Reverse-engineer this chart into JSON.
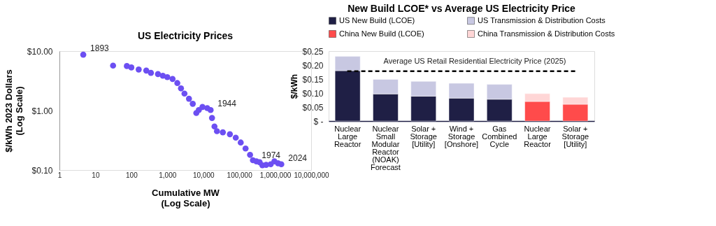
{
  "chart_data": [
    {
      "type": "scatter",
      "title": "US Electricity Prices",
      "xlabel": "Cumulative MW (Log Scale)",
      "ylabel": "$/kWh 2023 Dollars (Log Scale)",
      "log": "xy",
      "grid": false,
      "marker": "circle",
      "xlim": [
        1,
        10000000
      ],
      "ylim": [
        0.1,
        10
      ],
      "xticks": [
        1,
        10,
        100,
        {
          "value": 1000,
          "label": "1,000"
        },
        {
          "value": 10000,
          "label": "10,000"
        },
        {
          "value": 100000,
          "label": "100,000"
        },
        {
          "value": 1000000,
          "label": "1,000,000"
        },
        {
          "value": 10000000,
          "label": "10,000,000"
        }
      ],
      "yticks": [
        {
          "value": 0.1,
          "label": "$0.10"
        },
        {
          "value": 1,
          "label": "$1.00"
        },
        {
          "value": 10,
          "label": "$10.00"
        }
      ],
      "series": [
        {
          "color": "#6c4ff2",
          "x": [
            4.6,
            31,
            75,
            100,
            160,
            260,
            350,
            550,
            750,
            1000,
            1400,
            1900,
            2400,
            3000,
            4000,
            5100,
            6400,
            7500,
            9500,
            12900,
            16000,
            17500,
            20500,
            24000,
            35000,
            55000,
            80000,
            110000,
            150000,
            200000,
            240000,
            300000,
            370000,
            440000,
            560000,
            750000,
            950000,
            1200000,
            1480000
          ],
          "values": [
            8.7,
            5.7,
            5.6,
            5.3,
            4.9,
            4.7,
            4.3,
            4.1,
            3.85,
            3.65,
            3.4,
            2.9,
            2.36,
            1.93,
            1.58,
            1.3,
            0.91,
            1.02,
            1.15,
            1.1,
            1.02,
            0.75,
            0.54,
            0.45,
            0.43,
            0.4,
            0.35,
            0.29,
            0.23,
            0.18,
            0.146,
            0.14,
            0.135,
            0.12,
            0.122,
            0.125,
            0.14,
            0.13,
            0.125
          ]
        }
      ],
      "annotations": [
        {
          "text": "1893",
          "x": 4.6,
          "y": 8.7
        },
        {
          "text": "1944",
          "x": 16000,
          "y": 1.02
        },
        {
          "text": "1974",
          "x": 270000,
          "y": 0.14
        },
        {
          "text": "2024",
          "x": 1480000,
          "y": 0.125
        }
      ]
    },
    {
      "type": "bar",
      "stacked": true,
      "title": "New Build LCOE* vs Average US Electricity Price",
      "ylabel": "$/kWh",
      "legend": "top",
      "grid": false,
      "categories": [
        "Nuclear Large Reactor",
        "Nuclear Small Modular Reactor (NOAK) Forecast",
        "Solar + Storage [Utility]",
        "Wind + Storage [Onshore]",
        "Gas Combined Cycle",
        "Nuclear Large Reactor",
        "Solar + Storage [Utility]"
      ],
      "ylim": [
        0,
        0.25
      ],
      "yticks": [
        {
          "value": 0,
          "label": "$ -"
        },
        {
          "value": 0.05,
          "label": "$0.05"
        },
        {
          "value": 0.1,
          "label": "$0.10"
        },
        {
          "value": 0.15,
          "label": "$0.15"
        },
        {
          "value": 0.2,
          "label": "$0.20"
        },
        {
          "value": 0.25,
          "label": "$0.25"
        }
      ],
      "series": [
        {
          "name": "US New Build (LCOE)",
          "color": "#1f1f45",
          "values": [
            0.18,
            0.097,
            0.089,
            0.082,
            0.078,
            null,
            null
          ]
        },
        {
          "name": "US Transmission & Distribution Costs",
          "color": "#c8c8e2",
          "values": [
            0.051,
            0.052,
            0.053,
            0.053,
            0.053,
            null,
            null
          ]
        },
        {
          "name": "China New Build (LCOE)",
          "color": "#ff4b4b",
          "values": [
            null,
            null,
            null,
            null,
            null,
            0.07,
            0.06
          ]
        },
        {
          "name": "China Transmission & Distribution Costs",
          "color": "#ffd6d6",
          "values": [
            null,
            null,
            null,
            null,
            null,
            0.028,
            0.025
          ]
        }
      ],
      "ref_lines": [
        {
          "axis": "y",
          "value": 0.178,
          "label": "Average US Retail Residential Electricity Price (2025)",
          "color": "#000000",
          "line_style": "dashed"
        }
      ]
    }
  ]
}
